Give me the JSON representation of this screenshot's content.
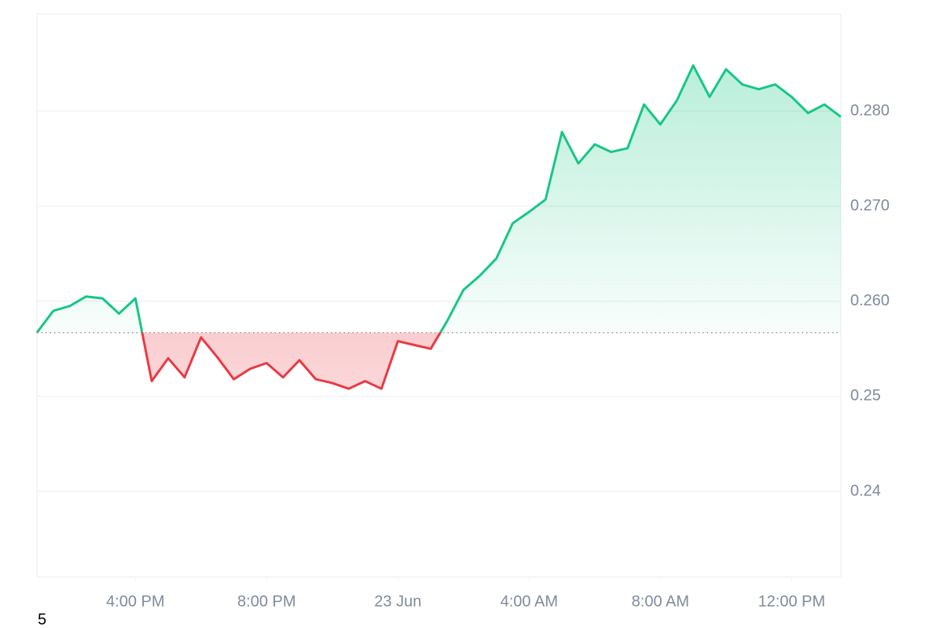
{
  "chart_data": {
    "type": "line",
    "baseline": 0.2567,
    "color_up": "#16c784",
    "color_down": "#ea3943",
    "x": [
      "22 Jun 13:00",
      "22 Jun 13:30",
      "22 Jun 14:00",
      "22 Jun 14:30",
      "22 Jun 15:00",
      "22 Jun 15:30",
      "22 Jun 16:00",
      "22 Jun 16:30",
      "22 Jun 17:00",
      "22 Jun 17:30",
      "22 Jun 18:00",
      "22 Jun 18:30",
      "22 Jun 19:00",
      "22 Jun 19:30",
      "22 Jun 20:00",
      "22 Jun 20:30",
      "22 Jun 21:00",
      "22 Jun 21:30",
      "22 Jun 22:00",
      "22 Jun 22:30",
      "22 Jun 23:00",
      "22 Jun 23:30",
      "23 Jun 00:00",
      "23 Jun 00:30",
      "23 Jun 01:00",
      "23 Jun 01:30",
      "23 Jun 02:00",
      "23 Jun 02:30",
      "23 Jun 03:00",
      "23 Jun 03:30",
      "23 Jun 04:00",
      "23 Jun 04:30",
      "23 Jun 05:00",
      "23 Jun 05:30",
      "23 Jun 06:00",
      "23 Jun 06:30",
      "23 Jun 07:00",
      "23 Jun 07:30",
      "23 Jun 08:00",
      "23 Jun 08:30",
      "23 Jun 09:00",
      "23 Jun 09:30",
      "23 Jun 10:00",
      "23 Jun 10:30",
      "23 Jun 11:00",
      "23 Jun 11:30",
      "23 Jun 12:00",
      "23 Jun 12:30",
      "23 Jun 13:00",
      "23 Jun 13:30"
    ],
    "values": [
      0.2567,
      0.259,
      0.2595,
      0.2605,
      0.2603,
      0.2587,
      0.2603,
      0.2516,
      0.254,
      0.252,
      0.2562,
      0.2541,
      0.2518,
      0.2529,
      0.2535,
      0.252,
      0.2538,
      0.2518,
      0.2514,
      0.2508,
      0.2516,
      0.2508,
      0.2558,
      0.2554,
      0.255,
      0.2579,
      0.2612,
      0.2627,
      0.2645,
      0.2682,
      0.2694,
      0.2707,
      0.2778,
      0.2745,
      0.2765,
      0.2757,
      0.2761,
      0.2807,
      0.2786,
      0.2811,
      0.2848,
      0.2815,
      0.2844,
      0.2828,
      0.2823,
      0.2828,
      0.2815,
      0.2798,
      0.2807,
      0.2794
    ],
    "xlim": [
      "22 Jun 13:00",
      "23 Jun 13:30"
    ],
    "xticks": [
      {
        "value": "22 Jun 16:00",
        "label": "4:00 PM"
      },
      {
        "value": "22 Jun 20:00",
        "label": "8:00 PM"
      },
      {
        "value": "23 Jun 00:00",
        "label": "23 Jun"
      },
      {
        "value": "23 Jun 04:00",
        "label": "4:00 AM"
      },
      {
        "value": "23 Jun 08:00",
        "label": "8:00 AM"
      },
      {
        "value": "23 Jun 12:00",
        "label": "12:00 PM"
      }
    ],
    "ylim": [
      0.231,
      0.2902
    ],
    "yticks": [
      0.24,
      0.25,
      {
        "value": 0.26,
        "label": "0.260"
      },
      {
        "value": 0.27,
        "label": "0.270"
      },
      {
        "value": 0.28,
        "label": "0.280"
      }
    ],
    "grid": true,
    "annotation": "5"
  }
}
